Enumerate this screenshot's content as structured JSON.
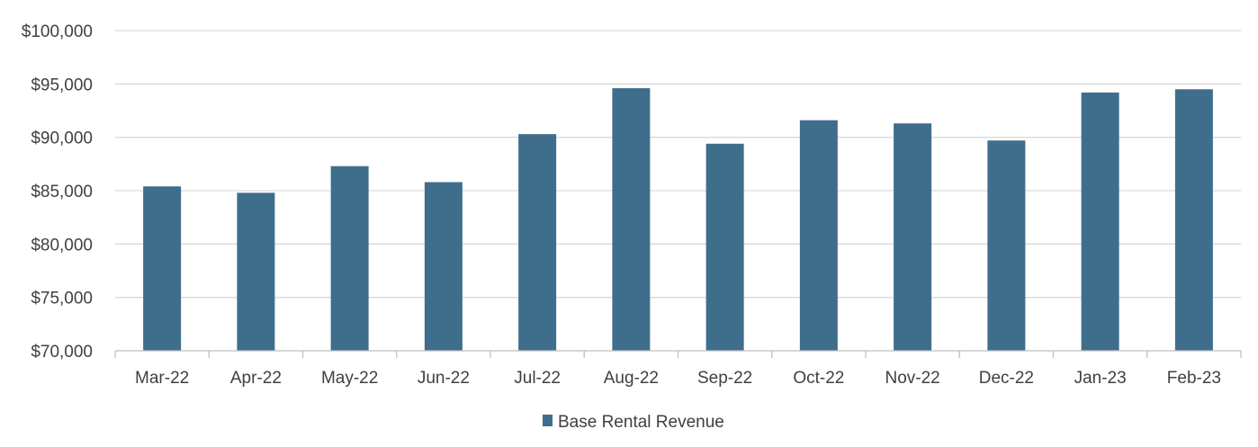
{
  "chart_data": {
    "type": "bar",
    "title": "",
    "xlabel": "",
    "ylabel": "",
    "categories": [
      "Mar-22",
      "Apr-22",
      "May-22",
      "Jun-22",
      "Jul-22",
      "Aug-22",
      "Sep-22",
      "Oct-22",
      "Nov-22",
      "Dec-22",
      "Jan-23",
      "Feb-23"
    ],
    "series": [
      {
        "name": "Base Rental Revenue",
        "color": "#3f6e8c",
        "values": [
          85400,
          84800,
          87300,
          85800,
          90300,
          94600,
          89400,
          91600,
          91300,
          89700,
          94200,
          94500
        ]
      }
    ],
    "ylim": [
      70000,
      100000
    ],
    "yticks": [
      70000,
      75000,
      80000,
      85000,
      90000,
      95000,
      100000
    ],
    "ytick_labels": [
      "$70,000",
      "$75,000",
      "$80,000",
      "$85,000",
      "$90,000",
      "$95,000",
      "$100,000"
    ],
    "grid": true,
    "legend_position": "bottom"
  }
}
